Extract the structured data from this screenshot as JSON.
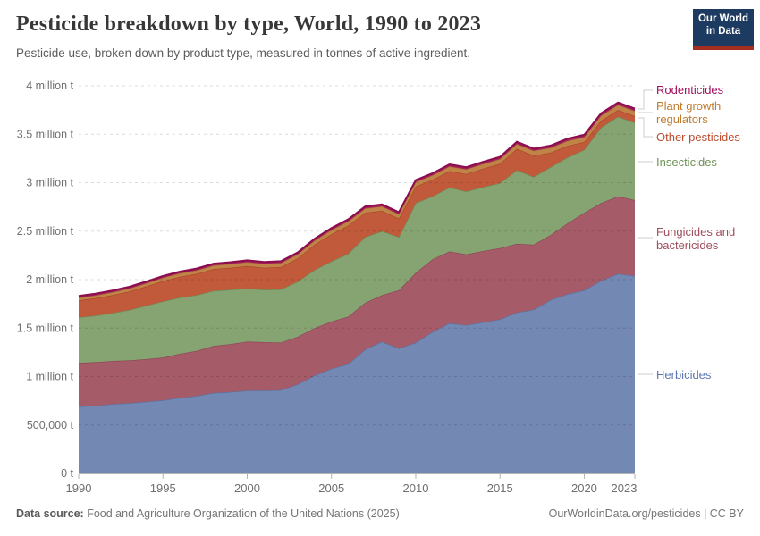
{
  "header": {
    "title": "Pesticide breakdown by type, World, 1990 to 2023",
    "subtitle": "Pesticide use, broken down by product type, measured in tonnes of active ingredient.",
    "logo": {
      "line1": "Our World",
      "line2": "in Data",
      "bg_color": "#1d3a60",
      "accent_color": "#a62e21"
    }
  },
  "chart_data": {
    "type": "area",
    "stacked": true,
    "title": "Pesticide breakdown by type, World, 1990 to 2023",
    "unit": "tonnes of active ingredient",
    "grid": "dashed",
    "legend_position": "right",
    "ylim": [
      0,
      4000000
    ],
    "x": [
      1990,
      1991,
      1992,
      1993,
      1994,
      1995,
      1996,
      1997,
      1998,
      1999,
      2000,
      2001,
      2002,
      2003,
      2004,
      2005,
      2006,
      2007,
      2008,
      2009,
      2010,
      2011,
      2012,
      2013,
      2014,
      2015,
      2016,
      2017,
      2018,
      2019,
      2020,
      2021,
      2022,
      2023
    ],
    "x_ticks": [
      1990,
      1995,
      2000,
      2005,
      2010,
      2015,
      2020,
      2023
    ],
    "y_ticks": [
      {
        "value": 0,
        "label": "0 t"
      },
      {
        "value": 500000,
        "label": "500,000 t"
      },
      {
        "value": 1000000,
        "label": "1 million t"
      },
      {
        "value": 1500000,
        "label": "1.5 million t"
      },
      {
        "value": 2000000,
        "label": "2 million t"
      },
      {
        "value": 2500000,
        "label": "2.5 million t"
      },
      {
        "value": 3000000,
        "label": "3 million t"
      },
      {
        "value": 3500000,
        "label": "3.5 million t"
      },
      {
        "value": 4000000,
        "label": "4 million t"
      }
    ],
    "series": [
      {
        "name": "Herbicides",
        "color": "#7389b4",
        "edge_color": "#5a73a3",
        "values": [
          690000,
          700000,
          715000,
          725000,
          740000,
          755000,
          780000,
          800000,
          830000,
          840000,
          855000,
          855000,
          860000,
          920000,
          1010000,
          1080000,
          1130000,
          1280000,
          1360000,
          1290000,
          1350000,
          1460000,
          1550000,
          1530000,
          1560000,
          1590000,
          1660000,
          1690000,
          1790000,
          1850000,
          1890000,
          1990000,
          2060000,
          2040000
        ]
      },
      {
        "name": "Fungicides and bactericides",
        "color": "#a65b68",
        "edge_color": "#8d4554",
        "values": [
          450000,
          448000,
          445000,
          442000,
          440000,
          440000,
          455000,
          465000,
          485000,
          495000,
          505000,
          500000,
          490000,
          490000,
          490000,
          488000,
          488000,
          480000,
          480000,
          600000,
          720000,
          750000,
          740000,
          730000,
          735000,
          735000,
          710000,
          670000,
          670000,
          730000,
          800000,
          800000,
          800000,
          780000
        ]
      },
      {
        "name": "Insecticides",
        "color": "#86a372",
        "edge_color": "#6d8c58",
        "values": [
          470000,
          480000,
          495000,
          520000,
          550000,
          580000,
          580000,
          575000,
          570000,
          560000,
          550000,
          540000,
          550000,
          570000,
          600000,
          620000,
          650000,
          680000,
          660000,
          550000,
          720000,
          650000,
          660000,
          650000,
          660000,
          670000,
          760000,
          700000,
          700000,
          680000,
          650000,
          780000,
          820000,
          800000
        ]
      },
      {
        "name": "Other pesticides",
        "color": "#c15a3b",
        "edge_color": "#ab4526",
        "values": [
          175000,
          180000,
          185000,
          190000,
          200000,
          210000,
          215000,
          220000,
          225000,
          228000,
          230000,
          228000,
          230000,
          240000,
          260000,
          280000,
          290000,
          250000,
          210000,
          190000,
          170000,
          170000,
          170000,
          180000,
          190000,
          200000,
          220000,
          220000,
          150000,
          120000,
          80000,
          70000,
          70000,
          67000
        ]
      },
      {
        "name": "Plant growth regulators",
        "color": "#c08449",
        "edge_color": "#a96e31",
        "values": [
          28000,
          29000,
          30000,
          31000,
          32000,
          34000,
          35000,
          36000,
          37000,
          38000,
          40000,
          40000,
          41000,
          42000,
          43000,
          44000,
          45000,
          45000,
          46000,
          46000,
          47000,
          47000,
          48000,
          48000,
          49000,
          49000,
          50000,
          50000,
          50000,
          51000,
          51000,
          52000,
          53000,
          52000
        ]
      },
      {
        "name": "Rodenticides",
        "color": "#a41d5f",
        "edge_color": "#8c0d4e",
        "values": [
          18000,
          18000,
          18000,
          18000,
          18000,
          18000,
          18000,
          18000,
          18000,
          19000,
          19000,
          19000,
          19000,
          19000,
          19000,
          20000,
          20000,
          20000,
          20000,
          20000,
          21000,
          21000,
          21000,
          21000,
          22000,
          22000,
          22000,
          22000,
          23000,
          23000,
          23000,
          24000,
          25000,
          25000
        ]
      }
    ]
  },
  "legend": {
    "items": [
      {
        "label": "Rodenticides",
        "color": "#a2105f"
      },
      {
        "label": "Plant growth regulators",
        "color": "#bf7c2f"
      },
      {
        "label": "Other pesticides",
        "color": "#bd4c2b"
      },
      {
        "label": "Insecticides",
        "color": "#6f9358"
      },
      {
        "label": "Fungicides and bactericides",
        "color": "#a04f5e"
      },
      {
        "label": "Herbicides",
        "color": "#5c77b2"
      }
    ]
  },
  "footer": {
    "datasource_label": "Data source:",
    "datasource_text": "Food and Agriculture Organization of the United Nations (2025)",
    "credit": "OurWorldinData.org/pesticides | CC BY"
  }
}
